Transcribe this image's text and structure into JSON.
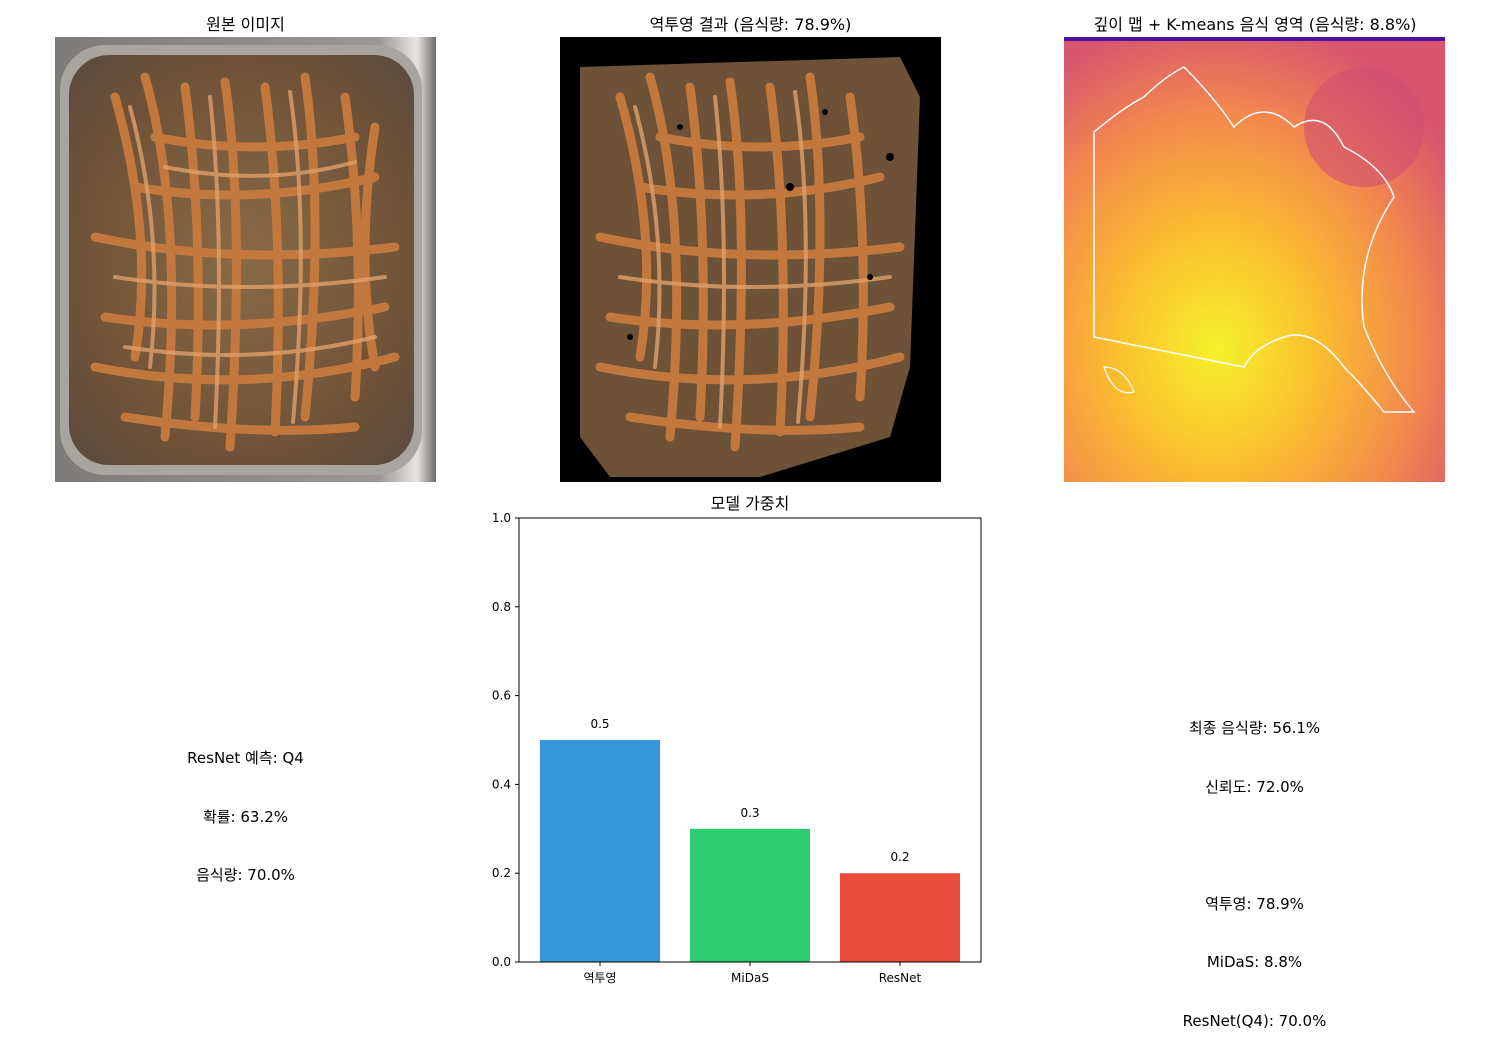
{
  "panels": {
    "original": {
      "title": "원본 이미지"
    },
    "backprojection": {
      "title": "역투영 결과 (음식량: 78.9%)"
    },
    "depth": {
      "title": "깊이 맵 + K-means 음식 영역 (음식량: 8.8%)"
    }
  },
  "resnet_summary": {
    "lines": [
      "ResNet 예측: Q4",
      "확률: 63.2%",
      "음식량: 70.0%"
    ]
  },
  "final_summary": {
    "lines": [
      "최종 음식량: 56.1%",
      "신뢰도: 72.0%",
      "",
      "역투영: 78.9%",
      "MiDaS: 8.8%",
      "ResNet(Q4): 70.0%"
    ]
  },
  "chart_data": {
    "type": "bar",
    "title": "모델 가중치",
    "categories": [
      "역투영",
      "MiDaS",
      "ResNet"
    ],
    "values": [
      0.5,
      0.3,
      0.2
    ],
    "value_labels": [
      "0.5",
      "0.3",
      "0.2"
    ],
    "colors": [
      "#3498db",
      "#2ecc71",
      "#e74c3c"
    ],
    "ylim": [
      0,
      1.0
    ],
    "yticks": [
      "0.0",
      "0.2",
      "0.4",
      "0.6",
      "0.8",
      "1.0"
    ],
    "ytick_values": [
      0,
      0.2,
      0.4,
      0.6,
      0.8,
      1.0
    ],
    "xlabel": "",
    "ylabel": "",
    "grid": false
  }
}
